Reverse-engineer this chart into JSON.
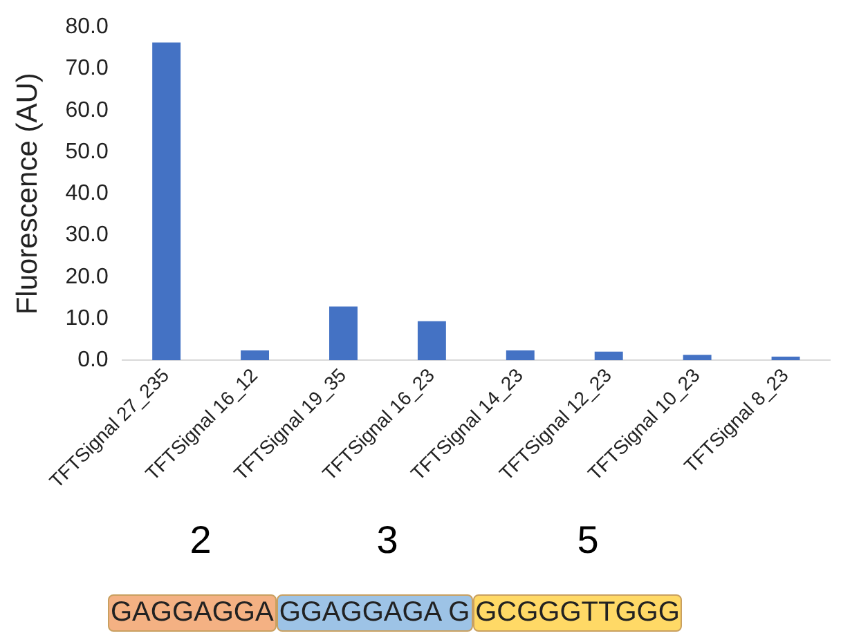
{
  "chart_data": {
    "type": "bar",
    "ylabel": "Fluorescence (AU)",
    "categories": [
      "TFTSignal 27_235",
      "TFTSignal 16_12",
      "TFTSignal 19_35",
      "TFTSignal 16_23",
      "TFTSignal 14_23",
      "TFTSignal 12_23",
      "TFTSignal 10_23",
      "TFTSignal 8_23"
    ],
    "values": [
      76.3,
      2.4,
      12.9,
      9.4,
      2.4,
      2.1,
      1.3,
      0.9
    ],
    "color": "#4472c4",
    "ylim": [
      0,
      80
    ],
    "yticks": [
      {
        "value": 0,
        "label": "0.0"
      },
      {
        "value": 10,
        "label": "10.0"
      },
      {
        "value": 20,
        "label": "20.0"
      },
      {
        "value": 30,
        "label": "30.0"
      },
      {
        "value": 40,
        "label": "40.0"
      },
      {
        "value": 50,
        "label": "50.0"
      },
      {
        "value": 60,
        "label": "60.0"
      },
      {
        "value": 70,
        "label": "70.0"
      },
      {
        "value": 80,
        "label": "80.0"
      }
    ],
    "grid": false,
    "legend": false,
    "annotations": [
      "2",
      "3",
      "5",
      "GAGGAGGA",
      "GGAGGAGA G",
      "GCGGGTTGGG"
    ]
  }
}
